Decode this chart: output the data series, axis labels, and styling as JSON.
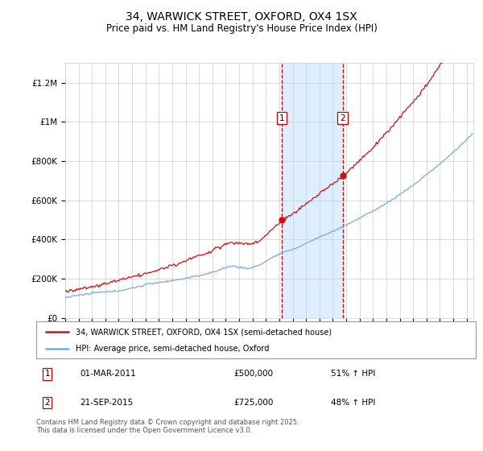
{
  "title": "34, WARWICK STREET, OXFORD, OX4 1SX",
  "subtitle": "Price paid vs. HM Land Registry's House Price Index (HPI)",
  "ylim": [
    0,
    1300000
  ],
  "xlim_start": 1995,
  "xlim_end": 2025.5,
  "sale1_date": 2011.17,
  "sale2_date": 2015.73,
  "sale1_price": 500000,
  "sale2_price": 725000,
  "hpi_line_color": "#7aaadd",
  "price_line_color": "#cc1111",
  "shade_color": "#ddeeff",
  "dashed_color": "#cc0000",
  "legend_label1": "34, WARWICK STREET, OXFORD, OX4 1SX (semi-detached house)",
  "legend_label2": "HPI: Average price, semi-detached house, Oxford",
  "footnote": "Contains HM Land Registry data © Crown copyright and database right 2025.\nThis data is licensed under the Open Government Licence v3.0.",
  "grid_color": "#cccccc",
  "ytick_vals": [
    0,
    200000,
    400000,
    600000,
    800000,
    1000000,
    1200000
  ],
  "ytick_labels": [
    "£0",
    "£200K",
    "£400K",
    "£600K",
    "£800K",
    "£1M",
    "£1.2M"
  ]
}
